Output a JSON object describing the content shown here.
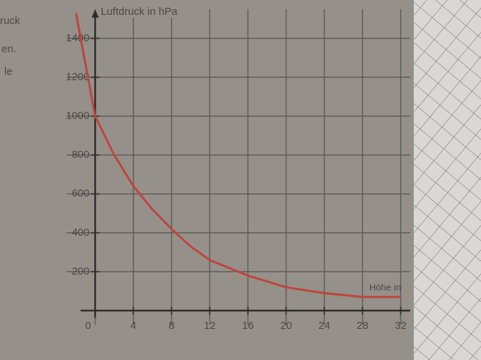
{
  "page_text": [
    "ruck",
    "en.",
    "le"
  ],
  "chart_data": {
    "type": "line",
    "ylabel": "Luftdruck in hPa",
    "xlabel": "Höhe in",
    "x": [
      -2,
      0,
      2,
      4,
      6,
      8,
      10,
      12,
      16,
      20,
      24,
      28,
      32
    ],
    "series": [
      {
        "name": "Luftdruck",
        "color": "#c0443c",
        "values": [
          1530,
          1000,
          800,
          640,
          520,
          420,
          330,
          260,
          180,
          120,
          90,
          70,
          70
        ]
      }
    ],
    "xlim": [
      -3,
      33
    ],
    "ylim": [
      0,
      1550
    ],
    "xticks": [
      0,
      4,
      8,
      12,
      16,
      20,
      24,
      28,
      32
    ],
    "yticks": [
      200,
      400,
      600,
      800,
      1000,
      1200,
      1400
    ],
    "grid": true
  }
}
